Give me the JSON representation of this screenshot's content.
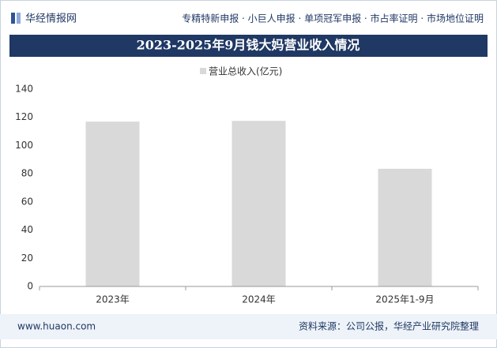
{
  "header": {
    "logo": "华经情报网",
    "services": "专精特新申报 · 小巨人申报 · 单项冠军申报 · 市占率证明 · 市场地位证明"
  },
  "chart_data": {
    "type": "bar",
    "title": "2023-2025年9月钱大妈营业收入情况",
    "categories": [
      "2023年",
      "2024年",
      "2025年1-9月"
    ],
    "series": [
      {
        "name": "营业总收入(亿元)",
        "color": "#d9d9d9",
        "values": [
          117,
          117.5,
          83.5
        ]
      }
    ],
    "ylim": [
      0,
      140
    ],
    "yticks": [
      0,
      20,
      40,
      60,
      80,
      100,
      120,
      140
    ],
    "grid": false,
    "legend": "top"
  },
  "footer": {
    "website": "www.huaon.com",
    "source": "资料来源：公司公报，华经产业研究院整理"
  }
}
